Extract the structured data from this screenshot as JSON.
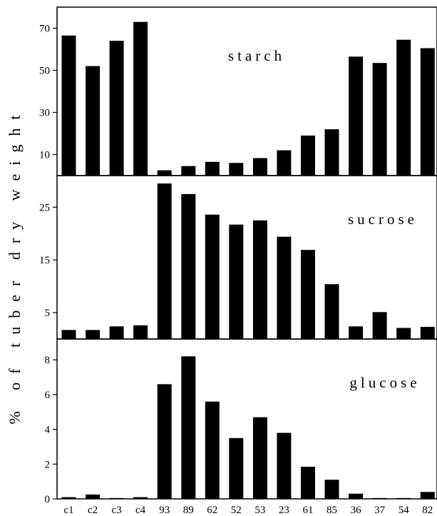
{
  "chart_data": [
    {
      "type": "bar",
      "title": "starch",
      "categories": [
        "c1",
        "c2",
        "c3",
        "c4",
        "93",
        "89",
        "62",
        "52",
        "53",
        "23",
        "61",
        "85",
        "36",
        "37",
        "54",
        "82"
      ],
      "values": [
        66.5,
        52,
        64,
        73,
        2.5,
        4.5,
        6.5,
        6,
        8.3,
        12,
        19,
        22,
        56.5,
        53.5,
        64.5,
        60.5
      ],
      "ylim": [
        0,
        80
      ],
      "yticks": [
        10,
        30,
        50,
        70
      ]
    },
    {
      "type": "bar",
      "title": "sucrose",
      "categories": [
        "c1",
        "c2",
        "c3",
        "c4",
        "93",
        "89",
        "62",
        "52",
        "53",
        "23",
        "61",
        "85",
        "36",
        "37",
        "54",
        "82"
      ],
      "values": [
        1.7,
        1.7,
        2.4,
        2.6,
        29.5,
        27.5,
        23.6,
        21.7,
        22.5,
        19.4,
        16.9,
        10.4,
        2.4,
        5.1,
        2.1,
        2.3
      ],
      "ylim": [
        0,
        31
      ],
      "yticks": [
        5,
        15,
        25
      ]
    },
    {
      "type": "bar",
      "title": "glucose",
      "categories": [
        "c1",
        "c2",
        "c3",
        "c4",
        "93",
        "89",
        "62",
        "52",
        "53",
        "23",
        "61",
        "85",
        "36",
        "37",
        "54",
        "82"
      ],
      "values": [
        0.1,
        0.25,
        0.05,
        0.1,
        6.6,
        8.2,
        5.6,
        3.5,
        4.7,
        3.8,
        1.85,
        1.1,
        0.3,
        0.05,
        0.05,
        0.4
      ],
      "ylim": [
        0,
        9.2
      ],
      "yticks": [
        0,
        2,
        4,
        6,
        8
      ]
    }
  ],
  "ylabel": "% of tuber dry weight"
}
